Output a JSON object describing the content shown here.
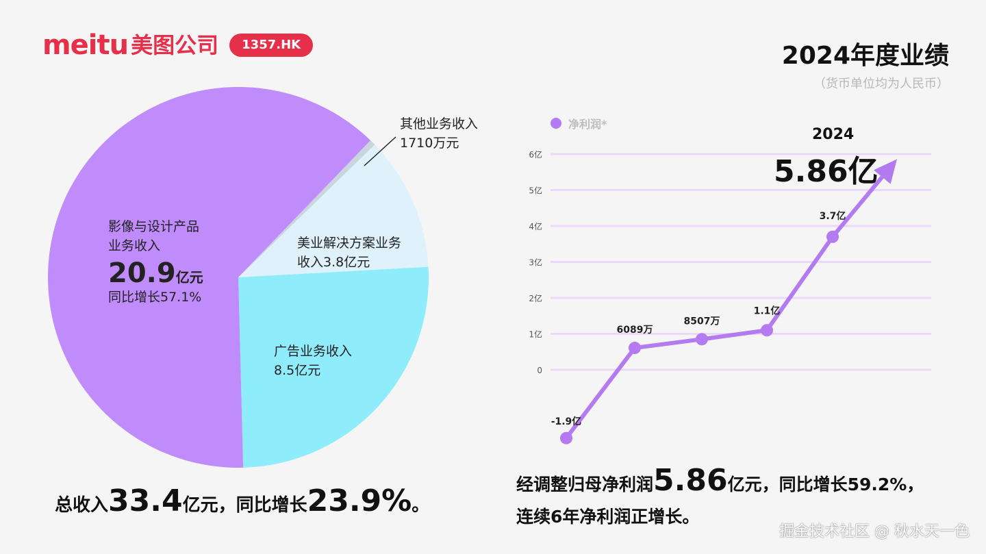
{
  "header": {
    "logo_word": "meitu",
    "logo_cn": "美图公司",
    "ticker": "1357.HK",
    "title": "2024年度业绩",
    "subtitle": "（货币单位均为人民币）"
  },
  "colors": {
    "brand": "#e6304a",
    "imaging": "#c08bfb",
    "advertising": "#8fecfb",
    "beauty": "#dff2fb",
    "other": "#c9d6dd",
    "line": "#b47af0",
    "grid": "#ead8fb"
  },
  "chart_data": [
    {
      "type": "pie",
      "title": "",
      "series": [
        {
          "name": "影像与设计产品业务收入",
          "value": 20.9
        },
        {
          "name": "广告业务收入",
          "value": 8.5
        },
        {
          "name": "美业解决方案业务收入",
          "value": 3.8
        },
        {
          "name": "其他业务收入",
          "value": 0.171
        }
      ],
      "labels": {
        "imaging": {
          "line1": "影像与设计产品",
          "line2": "业务收入",
          "value": "20.9",
          "unit": "亿元",
          "growth": "同比增长57.1%"
        },
        "advertising": {
          "line1": "广告业务收入",
          "line2": "8.5亿元"
        },
        "beauty": {
          "line1": "美业解决方案业务",
          "line2": "收入3.8亿元"
        },
        "other": {
          "line1": "其他业务收入",
          "line2": "1710万元"
        }
      },
      "total": {
        "prefix": "总收入",
        "value": "33.4",
        "unit": "亿元",
        "mid": "，同比增长",
        "growth": "23.9%",
        "suffix": "。"
      }
    },
    {
      "type": "line",
      "title": "",
      "legend": "净利润*",
      "ylim": [
        -2,
        6
      ],
      "yticks": [
        "0",
        "1亿",
        "2亿",
        "3亿",
        "4亿",
        "5亿",
        "6亿"
      ],
      "series": [
        {
          "name": "净利润*",
          "values": [
            -1.9,
            0.6089,
            0.8507,
            1.1,
            3.7,
            5.86
          ],
          "labels": [
            "-1.9亿",
            "6089万",
            "8507万",
            "1.1亿",
            "3.7亿",
            ""
          ]
        }
      ],
      "highlight": {
        "year": "2024",
        "value": "5.86亿"
      }
    }
  ],
  "summary": {
    "line1_prefix": "经调整归母净利润",
    "line1_value": "5.86",
    "line1_suffix": "亿元，同比增长59.2%，",
    "line2": "连续6年净利润正增长。"
  },
  "watermark": "掘金技术社区 @ 秋水天一色"
}
